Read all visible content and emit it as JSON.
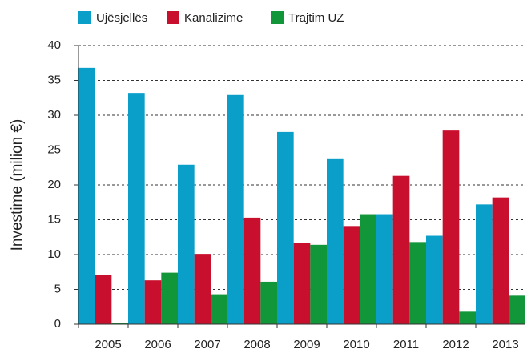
{
  "chart_data": {
    "type": "bar",
    "y_label": "Investime (milion €)",
    "categories": [
      "2005",
      "2006",
      "2007",
      "2008",
      "2009",
      "2010",
      "2011",
      "2012",
      "2013"
    ],
    "series": [
      {
        "name": "Ujësjellës",
        "color": "#0a9fc9",
        "values": [
          36.8,
          33.2,
          22.9,
          32.9,
          27.6,
          23.7,
          15.8,
          12.7,
          17.2
        ]
      },
      {
        "name": "Kanalizime",
        "color": "#c8102e",
        "values": [
          7.1,
          6.3,
          10.1,
          15.3,
          11.7,
          14.1,
          21.3,
          27.8,
          18.2
        ]
      },
      {
        "name": "Trajtim UZ",
        "color": "#12963a",
        "values": [
          0.2,
          7.4,
          4.3,
          6.1,
          11.4,
          15.8,
          11.8,
          1.8,
          4.1
        ]
      }
    ],
    "ylim": [
      0,
      40
    ],
    "yticks": [
      0,
      5,
      10,
      15,
      20,
      25,
      30,
      35,
      40
    ],
    "grid": true,
    "legend": "top"
  }
}
